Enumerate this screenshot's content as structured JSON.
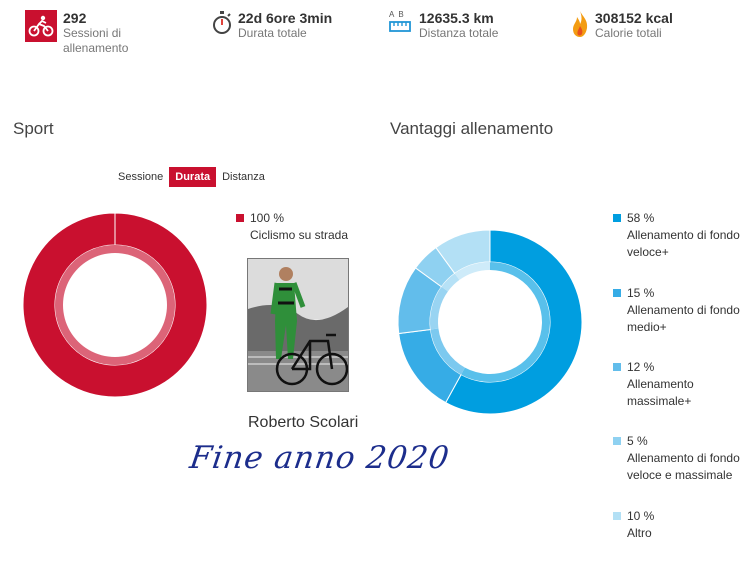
{
  "stats": [
    {
      "value": "292",
      "label_line1": "Sessioni di",
      "label_line2": "allenamento",
      "icon": "cycling-icon"
    },
    {
      "value": "22d 6ore 3min",
      "label": "Durata totale",
      "icon": "stopwatch-icon"
    },
    {
      "value": "12635.3 km",
      "label": "Distanza totale",
      "icon": "ruler-icon",
      "prefix": "A  B"
    },
    {
      "value": "308152 kcal",
      "label": "Calorie totali",
      "icon": "flame-icon"
    }
  ],
  "sport": {
    "title": "Sport",
    "tabs": [
      "Sessione",
      "Durata",
      "Distanza"
    ],
    "active_tab": "Durata",
    "legend": [
      {
        "percent": "100 %",
        "name": "Ciclismo su strada",
        "color": "#c9102f"
      }
    ]
  },
  "vantaggi": {
    "title": "Vantaggi allenamento",
    "legend": [
      {
        "percent": "58 %",
        "name_line1": "Allenamento di fondo",
        "name_line2": "veloce+",
        "color": "#009ee0"
      },
      {
        "percent": "15 %",
        "name_line1": "Allenamento di fondo",
        "name_line2": "medio+",
        "color": "#36ace6"
      },
      {
        "percent": "12 %",
        "name_line1": "Allenamento",
        "name_line2": "massimale+",
        "color": "#62bdeb"
      },
      {
        "percent": "5 %",
        "name_line1": "Allenamento di fondo",
        "name_line2": "veloce e massimale",
        "color": "#8fd1f1"
      },
      {
        "percent": "10 %",
        "name_line1": "Altro",
        "name_line2": "",
        "color": "#b3e0f5"
      }
    ]
  },
  "profile": {
    "name": "Roberto Scolari",
    "signature": "Fine anno 2020"
  },
  "chart_data": [
    {
      "type": "pie",
      "categories": [
        "Ciclismo su strada"
      ],
      "values": [
        100
      ],
      "colors": [
        "#c9102f"
      ]
    },
    {
      "type": "pie",
      "categories": [
        "Allenamento di fondo veloce+",
        "Allenamento di fondo medio+",
        "Allenamento massimale+",
        "Allenamento di fondo veloce e massimale",
        "Altro"
      ],
      "values": [
        58,
        15,
        12,
        5,
        10
      ],
      "colors": [
        "#009ee0",
        "#36ace6",
        "#62bdeb",
        "#8fd1f1",
        "#b3e0f5"
      ]
    }
  ]
}
